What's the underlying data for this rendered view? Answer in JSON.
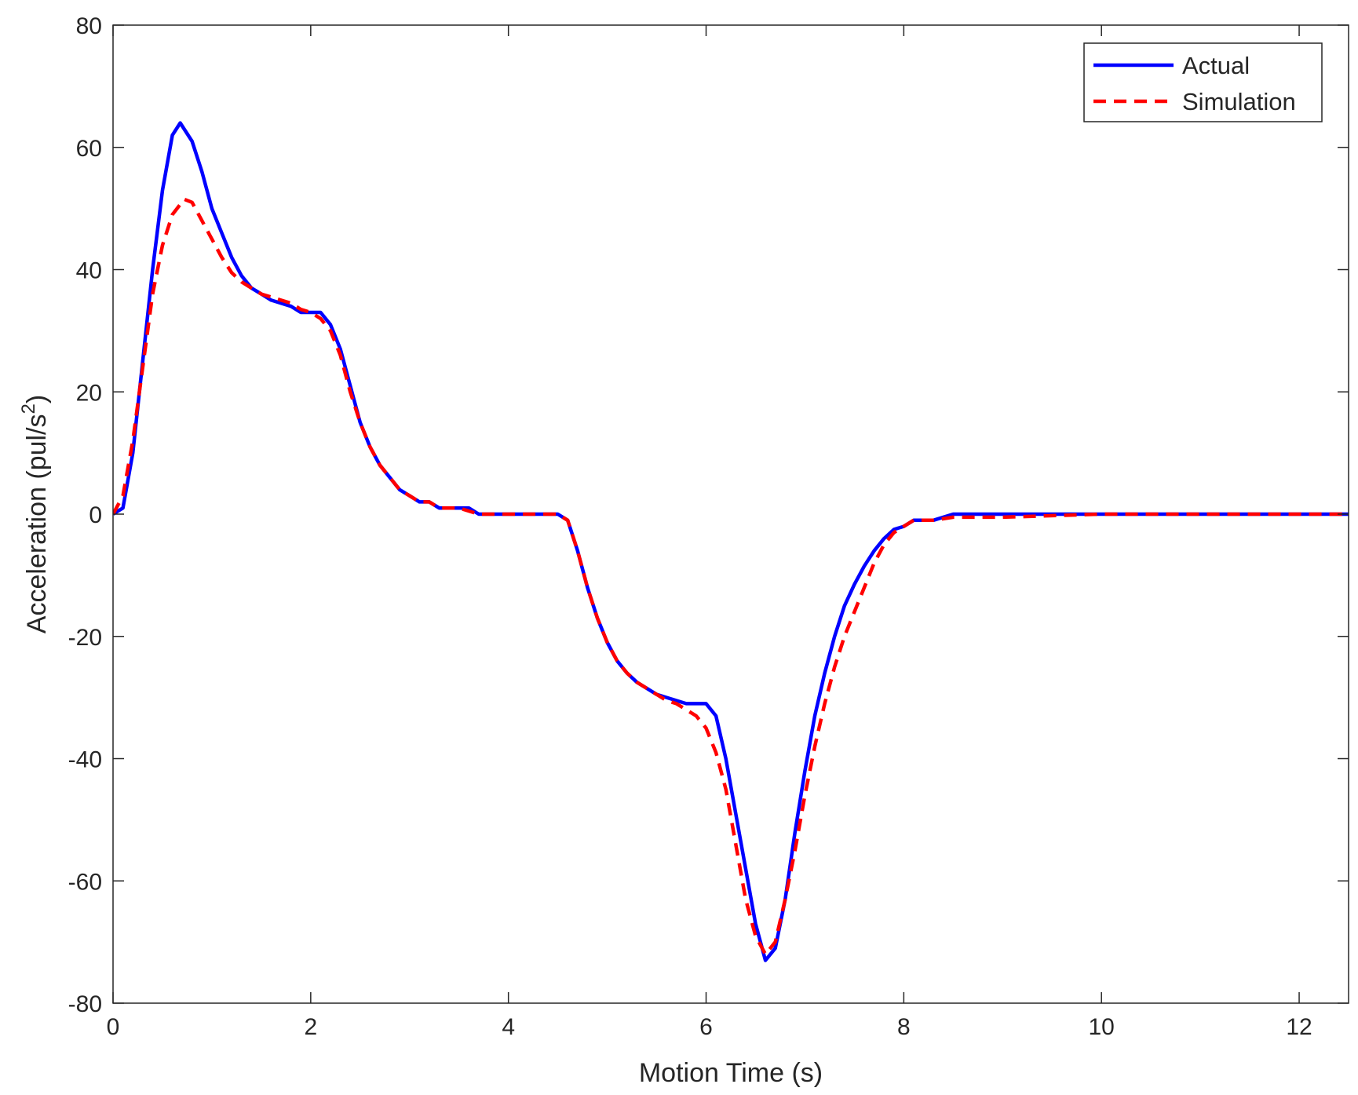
{
  "chart_data": {
    "type": "line",
    "title": "",
    "xlabel": "Motion Time (s)",
    "ylabel_main": "Acceleration (pul/s",
    "ylabel_sup": "2",
    "ylabel_end": ")",
    "xlim": [
      0,
      12.5
    ],
    "ylim": [
      -80,
      80
    ],
    "xticks": [
      0,
      2,
      4,
      6,
      8,
      10,
      12
    ],
    "yticks": [
      -80,
      -60,
      -40,
      -20,
      0,
      20,
      40,
      60,
      80
    ],
    "xtick_labels": [
      "0",
      "2",
      "4",
      "6",
      "8",
      "10",
      "12"
    ],
    "ytick_labels": [
      "-80",
      "-60",
      "-40",
      "-20",
      "0",
      "20",
      "40",
      "60",
      "80"
    ],
    "grid": false,
    "legend_position": "top-right",
    "series": [
      {
        "name": "Actual",
        "color": "#0000ff",
        "style": "solid",
        "points": [
          [
            0,
            0
          ],
          [
            0.1,
            1
          ],
          [
            0.2,
            10
          ],
          [
            0.3,
            25
          ],
          [
            0.4,
            40
          ],
          [
            0.5,
            53
          ],
          [
            0.6,
            62
          ],
          [
            0.68,
            64
          ],
          [
            0.8,
            61
          ],
          [
            0.9,
            56
          ],
          [
            1.0,
            50
          ],
          [
            1.1,
            46
          ],
          [
            1.2,
            42
          ],
          [
            1.3,
            39
          ],
          [
            1.4,
            37
          ],
          [
            1.5,
            36
          ],
          [
            1.6,
            35
          ],
          [
            1.8,
            34
          ],
          [
            1.9,
            33
          ],
          [
            2.0,
            33
          ],
          [
            2.1,
            33
          ],
          [
            2.2,
            31
          ],
          [
            2.3,
            27
          ],
          [
            2.4,
            21
          ],
          [
            2.5,
            15
          ],
          [
            2.6,
            11
          ],
          [
            2.7,
            8
          ],
          [
            2.8,
            6
          ],
          [
            2.9,
            4
          ],
          [
            3.0,
            3
          ],
          [
            3.1,
            2
          ],
          [
            3.2,
            2
          ],
          [
            3.3,
            1
          ],
          [
            3.4,
            1
          ],
          [
            3.6,
            1
          ],
          [
            3.7,
            0
          ],
          [
            4.0,
            0
          ],
          [
            4.5,
            0
          ],
          [
            4.6,
            -1
          ],
          [
            4.7,
            -6
          ],
          [
            4.8,
            -12
          ],
          [
            4.9,
            -17
          ],
          [
            5.0,
            -21
          ],
          [
            5.1,
            -24
          ],
          [
            5.2,
            -26
          ],
          [
            5.3,
            -27.5
          ],
          [
            5.4,
            -28.5
          ],
          [
            5.5,
            -29.5
          ],
          [
            5.6,
            -30
          ],
          [
            5.7,
            -30.5
          ],
          [
            5.8,
            -31
          ],
          [
            5.9,
            -31
          ],
          [
            6.0,
            -31
          ],
          [
            6.1,
            -33
          ],
          [
            6.2,
            -40
          ],
          [
            6.3,
            -49
          ],
          [
            6.4,
            -58
          ],
          [
            6.5,
            -67
          ],
          [
            6.6,
            -73
          ],
          [
            6.7,
            -71
          ],
          [
            6.8,
            -63
          ],
          [
            6.9,
            -52
          ],
          [
            7.0,
            -42
          ],
          [
            7.1,
            -33
          ],
          [
            7.2,
            -26
          ],
          [
            7.3,
            -20
          ],
          [
            7.4,
            -15
          ],
          [
            7.5,
            -11.5
          ],
          [
            7.6,
            -8.5
          ],
          [
            7.7,
            -6
          ],
          [
            7.8,
            -4
          ],
          [
            7.9,
            -2.5
          ],
          [
            8.0,
            -2
          ],
          [
            8.1,
            -1
          ],
          [
            8.3,
            -1
          ],
          [
            8.5,
            0
          ],
          [
            9.0,
            0
          ],
          [
            10.0,
            0
          ],
          [
            11.0,
            0
          ],
          [
            12.0,
            0
          ],
          [
            12.5,
            0
          ]
        ]
      },
      {
        "name": "Simulation",
        "color": "#ff0000",
        "style": "dashed",
        "points": [
          [
            0,
            0
          ],
          [
            0.1,
            3
          ],
          [
            0.2,
            12
          ],
          [
            0.3,
            24
          ],
          [
            0.4,
            36
          ],
          [
            0.5,
            44
          ],
          [
            0.6,
            49
          ],
          [
            0.72,
            51.5
          ],
          [
            0.8,
            51
          ],
          [
            0.9,
            48
          ],
          [
            1.0,
            45
          ],
          [
            1.1,
            42
          ],
          [
            1.2,
            39.5
          ],
          [
            1.3,
            38
          ],
          [
            1.4,
            37
          ],
          [
            1.5,
            36
          ],
          [
            1.6,
            35.5
          ],
          [
            1.8,
            34.5
          ],
          [
            1.9,
            33.5
          ],
          [
            2.0,
            33
          ],
          [
            2.1,
            32
          ],
          [
            2.2,
            30
          ],
          [
            2.3,
            26
          ],
          [
            2.4,
            20
          ],
          [
            2.5,
            15
          ],
          [
            2.6,
            11
          ],
          [
            2.7,
            8
          ],
          [
            2.8,
            6
          ],
          [
            2.9,
            4
          ],
          [
            3.0,
            3
          ],
          [
            3.1,
            2
          ],
          [
            3.2,
            2
          ],
          [
            3.3,
            1
          ],
          [
            3.5,
            1
          ],
          [
            3.7,
            0
          ],
          [
            4.0,
            0
          ],
          [
            4.5,
            0
          ],
          [
            4.6,
            -1
          ],
          [
            4.7,
            -6
          ],
          [
            4.8,
            -12
          ],
          [
            4.9,
            -17
          ],
          [
            5.0,
            -21
          ],
          [
            5.1,
            -24
          ],
          [
            5.2,
            -26
          ],
          [
            5.3,
            -27.5
          ],
          [
            5.4,
            -28.5
          ],
          [
            5.5,
            -29.5
          ],
          [
            5.6,
            -30.5
          ],
          [
            5.7,
            -31
          ],
          [
            5.8,
            -32
          ],
          [
            5.9,
            -33
          ],
          [
            6.0,
            -35
          ],
          [
            6.1,
            -39
          ],
          [
            6.2,
            -45
          ],
          [
            6.3,
            -54
          ],
          [
            6.4,
            -63
          ],
          [
            6.5,
            -69
          ],
          [
            6.6,
            -72
          ],
          [
            6.7,
            -70
          ],
          [
            6.8,
            -63
          ],
          [
            6.9,
            -55
          ],
          [
            7.0,
            -46
          ],
          [
            7.1,
            -38
          ],
          [
            7.2,
            -31
          ],
          [
            7.3,
            -25
          ],
          [
            7.4,
            -20
          ],
          [
            7.5,
            -16
          ],
          [
            7.6,
            -12
          ],
          [
            7.7,
            -8
          ],
          [
            7.8,
            -5
          ],
          [
            7.9,
            -3
          ],
          [
            8.0,
            -2
          ],
          [
            8.1,
            -1
          ],
          [
            8.3,
            -1
          ],
          [
            8.5,
            -0.5
          ],
          [
            9.0,
            -0.5
          ],
          [
            10.0,
            0
          ],
          [
            11.0,
            0
          ],
          [
            12.0,
            0
          ],
          [
            12.5,
            0
          ]
        ]
      }
    ]
  }
}
